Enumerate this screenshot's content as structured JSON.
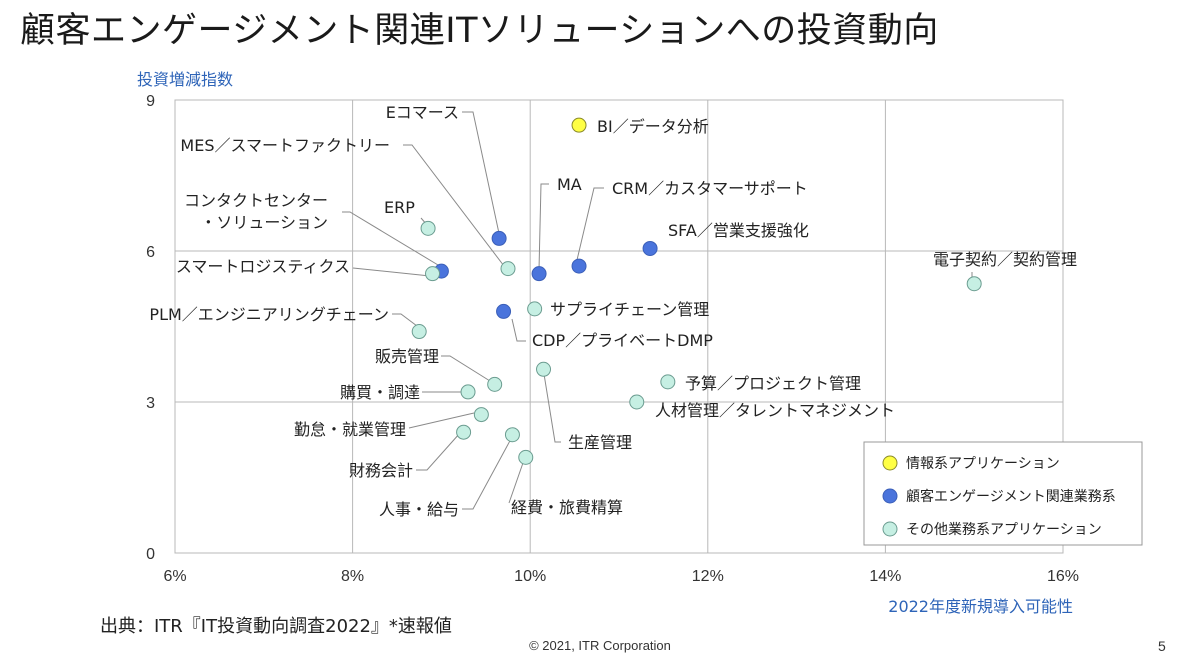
{
  "slide": {
    "title": "顧客エンゲージメント関連ITソリューションへの投資動向",
    "source": "出典：ITR『IT投資動向調査2022』*速報値",
    "copyright": "© 2021, ITR Corporation",
    "page_number": "5"
  },
  "colors": {
    "info": "#ffff44",
    "customer": "#4a74dc",
    "other": "#c6efe3",
    "axis_label": "#2e64b8",
    "grid": "#b8b8b8"
  },
  "chart_data": {
    "type": "scatter",
    "title": "",
    "xlabel": "2022年度新規導入可能性",
    "ylabel": "投資増減指数",
    "xlim": [
      6,
      16
    ],
    "ylim": [
      0,
      9
    ],
    "x_ticks": [
      "6%",
      "8%",
      "10%",
      "12%",
      "14%",
      "16%"
    ],
    "y_ticks": [
      "0",
      "3",
      "6",
      "9"
    ],
    "grid": true,
    "legend_position": "bottom-right",
    "series": [
      {
        "name": "情報系アプリケーション",
        "key": "info"
      },
      {
        "name": "顧客エンゲージメント関連業務系",
        "key": "customer"
      },
      {
        "name": "その他業務系アプリケーション",
        "key": "other"
      }
    ],
    "points": [
      {
        "label": "BI／データ分析",
        "x": 10.55,
        "y": 8.5,
        "series": "info"
      },
      {
        "label": "Eコマース",
        "x": 9.65,
        "y": 6.25,
        "series": "customer"
      },
      {
        "label": "MA",
        "x": 10.1,
        "y": 5.55,
        "series": "customer"
      },
      {
        "label": "CRM／カスタマーサポート",
        "x": 10.55,
        "y": 5.7,
        "series": "customer"
      },
      {
        "label": "SFA／営業支援強化",
        "x": 11.35,
        "y": 6.05,
        "series": "customer"
      },
      {
        "label": "コンタクトセンター・ソリューション",
        "x": 9.0,
        "y": 5.6,
        "series": "customer"
      },
      {
        "label": "CDP／プライベートDMP",
        "x": 9.7,
        "y": 4.8,
        "series": "customer"
      },
      {
        "label": "MES／スマートファクトリー",
        "x": 9.75,
        "y": 5.65,
        "series": "other"
      },
      {
        "label": "ERP",
        "x": 8.85,
        "y": 6.45,
        "series": "other"
      },
      {
        "label": "スマートロジスティクス",
        "x": 8.9,
        "y": 5.55,
        "series": "other"
      },
      {
        "label": "PLM／エンジニアリングチェーン",
        "x": 8.75,
        "y": 4.4,
        "series": "other"
      },
      {
        "label": "サプライチェーン管理",
        "x": 10.05,
        "y": 4.85,
        "series": "other"
      },
      {
        "label": "電子契約／契約管理",
        "x": 15.0,
        "y": 5.35,
        "series": "other"
      },
      {
        "label": "販売管理",
        "x": 9.6,
        "y": 3.35,
        "series": "other"
      },
      {
        "label": "購買・調達",
        "x": 9.3,
        "y": 3.2,
        "series": "other"
      },
      {
        "label": "生産管理",
        "x": 10.15,
        "y": 3.65,
        "series": "other"
      },
      {
        "label": "予算／プロジェクト管理",
        "x": 11.55,
        "y": 3.4,
        "series": "other"
      },
      {
        "label": "人材管理／タレントマネジメント",
        "x": 11.2,
        "y": 3.0,
        "series": "other"
      },
      {
        "label": "勤怠・就業管理",
        "x": 9.45,
        "y": 2.75,
        "series": "other"
      },
      {
        "label": "財務会計",
        "x": 9.25,
        "y": 2.4,
        "series": "other"
      },
      {
        "label": "人事・給与",
        "x": 9.8,
        "y": 2.35,
        "series": "other"
      },
      {
        "label": "経費・旅費精算",
        "x": 9.95,
        "y": 1.9,
        "series": "other"
      }
    ]
  }
}
